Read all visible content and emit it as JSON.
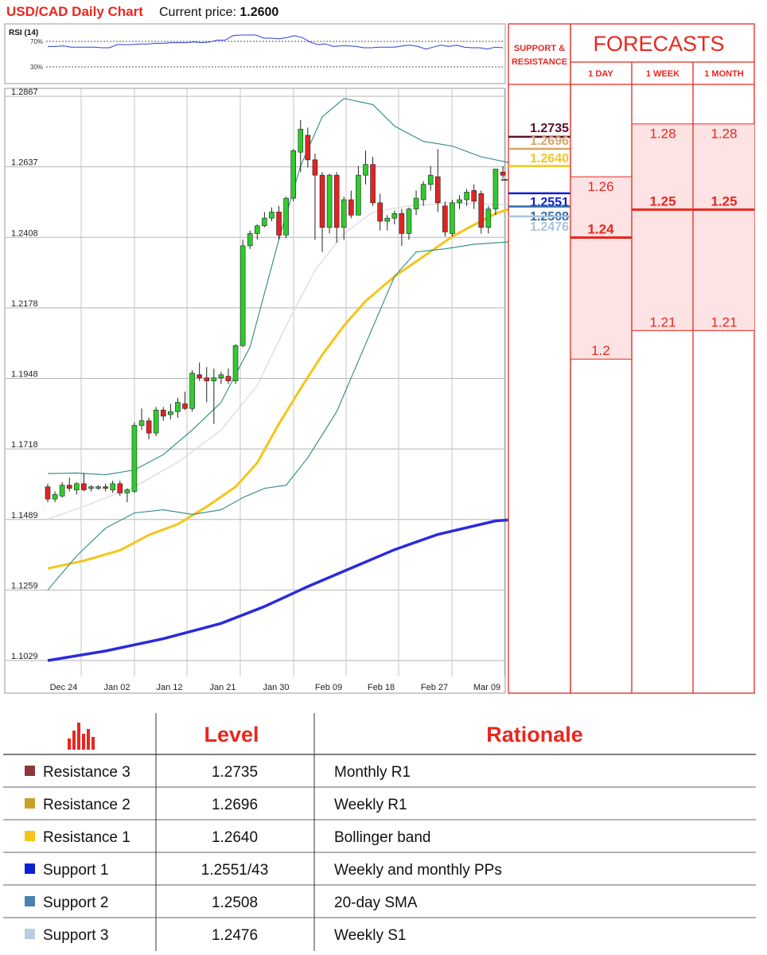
{
  "header": {
    "title": "USD/CAD Daily Chart",
    "price_label": "Current price:",
    "price_value": "1.2600"
  },
  "rsi": {
    "title": "RSI (14)",
    "levels": [
      "70%",
      "30%"
    ],
    "values": [
      62,
      62,
      63,
      61,
      61,
      61,
      61,
      60,
      60,
      65,
      65,
      65,
      66,
      66,
      67,
      67,
      68,
      68,
      68,
      69,
      68,
      69,
      72,
      72,
      79,
      80,
      80,
      80,
      75,
      75,
      74,
      76,
      79,
      76,
      69,
      65,
      66,
      62,
      63,
      63,
      62,
      60,
      60,
      61,
      61,
      61,
      63,
      64,
      62,
      58,
      61,
      64,
      62,
      64,
      61,
      60,
      60,
      58,
      61,
      60
    ]
  },
  "chart_data": {
    "type": "candlestick",
    "title": "USD/CAD Daily Chart",
    "current_price": 1.26,
    "x_ticks": [
      "Dec 24",
      "Jan 02",
      "Jan 12",
      "Jan 21",
      "Jan 30",
      "Feb 09",
      "Feb 18",
      "Feb 27",
      "Mar 09"
    ],
    "y_ticks": [
      "1.2867",
      "1.2637",
      "1.2408",
      "1.2178",
      "1.1948",
      "1.1718",
      "1.1489",
      "1.1259",
      "1.1029"
    ],
    "ylim": [
      1.1029,
      1.2867
    ],
    "candles": [
      {
        "o": 1.1595,
        "h": 1.1605,
        "l": 1.1545,
        "c": 1.1555
      },
      {
        "o": 1.1555,
        "h": 1.158,
        "l": 1.1545,
        "c": 1.157
      },
      {
        "o": 1.1565,
        "h": 1.161,
        "l": 1.156,
        "c": 1.16
      },
      {
        "o": 1.16,
        "h": 1.1625,
        "l": 1.158,
        "c": 1.159
      },
      {
        "o": 1.1585,
        "h": 1.161,
        "l": 1.157,
        "c": 1.1605
      },
      {
        "o": 1.1605,
        "h": 1.164,
        "l": 1.158,
        "c": 1.1585
      },
      {
        "o": 1.159,
        "h": 1.16,
        "l": 1.158,
        "c": 1.1595
      },
      {
        "o": 1.159,
        "h": 1.16,
        "l": 1.1585,
        "c": 1.1595
      },
      {
        "o": 1.1595,
        "h": 1.1605,
        "l": 1.158,
        "c": 1.159
      },
      {
        "o": 1.1585,
        "h": 1.1615,
        "l": 1.1575,
        "c": 1.1605
      },
      {
        "o": 1.1605,
        "h": 1.1615,
        "l": 1.1565,
        "c": 1.1575
      },
      {
        "o": 1.1575,
        "h": 1.159,
        "l": 1.1545,
        "c": 1.1585
      },
      {
        "o": 1.158,
        "h": 1.1805,
        "l": 1.1575,
        "c": 1.1795
      },
      {
        "o": 1.1795,
        "h": 1.185,
        "l": 1.178,
        "c": 1.181
      },
      {
        "o": 1.181,
        "h": 1.182,
        "l": 1.175,
        "c": 1.177
      },
      {
        "o": 1.177,
        "h": 1.1855,
        "l": 1.176,
        "c": 1.1845
      },
      {
        "o": 1.1845,
        "h": 1.1855,
        "l": 1.181,
        "c": 1.1825
      },
      {
        "o": 1.183,
        "h": 1.1865,
        "l": 1.1815,
        "c": 1.184
      },
      {
        "o": 1.184,
        "h": 1.1885,
        "l": 1.182,
        "c": 1.187
      },
      {
        "o": 1.1865,
        "h": 1.1905,
        "l": 1.1845,
        "c": 1.185
      },
      {
        "o": 1.185,
        "h": 1.1975,
        "l": 1.184,
        "c": 1.1965
      },
      {
        "o": 1.196,
        "h": 1.2,
        "l": 1.194,
        "c": 1.195
      },
      {
        "o": 1.195,
        "h": 1.1985,
        "l": 1.187,
        "c": 1.194
      },
      {
        "o": 1.194,
        "h": 1.198,
        "l": 1.18,
        "c": 1.195
      },
      {
        "o": 1.195,
        "h": 1.197,
        "l": 1.193,
        "c": 1.196
      },
      {
        "o": 1.1955,
        "h": 1.198,
        "l": 1.193,
        "c": 1.194
      },
      {
        "o": 1.194,
        "h": 1.206,
        "l": 1.193,
        "c": 1.2055
      },
      {
        "o": 1.2055,
        "h": 1.24,
        "l": 1.205,
        "c": 1.238
      },
      {
        "o": 1.238,
        "h": 1.243,
        "l": 1.237,
        "c": 1.242
      },
      {
        "o": 1.242,
        "h": 1.245,
        "l": 1.24,
        "c": 1.2445
      },
      {
        "o": 1.2445,
        "h": 1.249,
        "l": 1.244,
        "c": 1.247
      },
      {
        "o": 1.247,
        "h": 1.2505,
        "l": 1.246,
        "c": 1.249
      },
      {
        "o": 1.249,
        "h": 1.251,
        "l": 1.24,
        "c": 1.2415
      },
      {
        "o": 1.2415,
        "h": 1.254,
        "l": 1.2405,
        "c": 1.2535
      },
      {
        "o": 1.2535,
        "h": 1.2695,
        "l": 1.2525,
        "c": 1.269
      },
      {
        "o": 1.2685,
        "h": 1.279,
        "l": 1.262,
        "c": 1.276
      },
      {
        "o": 1.274,
        "h": 1.2765,
        "l": 1.2635,
        "c": 1.266
      },
      {
        "o": 1.266,
        "h": 1.268,
        "l": 1.24,
        "c": 1.261
      },
      {
        "o": 1.261,
        "h": 1.262,
        "l": 1.236,
        "c": 1.244
      },
      {
        "o": 1.244,
        "h": 1.2615,
        "l": 1.242,
        "c": 1.261
      },
      {
        "o": 1.261,
        "h": 1.262,
        "l": 1.239,
        "c": 1.244
      },
      {
        "o": 1.244,
        "h": 1.254,
        "l": 1.24,
        "c": 1.253
      },
      {
        "o": 1.253,
        "h": 1.256,
        "l": 1.247,
        "c": 1.248
      },
      {
        "o": 1.248,
        "h": 1.264,
        "l": 1.248,
        "c": 1.261
      },
      {
        "o": 1.261,
        "h": 1.269,
        "l": 1.258,
        "c": 1.2645
      },
      {
        "o": 1.2645,
        "h": 1.267,
        "l": 1.251,
        "c": 1.252
      },
      {
        "o": 1.252,
        "h": 1.255,
        "l": 1.243,
        "c": 1.246
      },
      {
        "o": 1.246,
        "h": 1.248,
        "l": 1.243,
        "c": 1.247
      },
      {
        "o": 1.247,
        "h": 1.2495,
        "l": 1.245,
        "c": 1.2485
      },
      {
        "o": 1.2485,
        "h": 1.25,
        "l": 1.238,
        "c": 1.242
      },
      {
        "o": 1.242,
        "h": 1.2505,
        "l": 1.24,
        "c": 1.25
      },
      {
        "o": 1.25,
        "h": 1.256,
        "l": 1.248,
        "c": 1.2535
      },
      {
        "o": 1.253,
        "h": 1.259,
        "l": 1.251,
        "c": 1.258
      },
      {
        "o": 1.258,
        "h": 1.264,
        "l": 1.256,
        "c": 1.261
      },
      {
        "o": 1.2605,
        "h": 1.2695,
        "l": 1.249,
        "c": 1.252
      },
      {
        "o": 1.251,
        "h": 1.2525,
        "l": 1.241,
        "c": 1.2425
      },
      {
        "o": 1.242,
        "h": 1.253,
        "l": 1.241,
        "c": 1.252
      },
      {
        "o": 1.252,
        "h": 1.2545,
        "l": 1.25,
        "c": 1.253
      },
      {
        "o": 1.253,
        "h": 1.2565,
        "l": 1.251,
        "c": 1.2555
      },
      {
        "o": 1.256,
        "h": 1.258,
        "l": 1.25,
        "c": 1.2525
      },
      {
        "o": 1.255,
        "h": 1.256,
        "l": 1.242,
        "c": 1.244
      },
      {
        "o": 1.244,
        "h": 1.251,
        "l": 1.242,
        "c": 1.25
      },
      {
        "o": 1.25,
        "h": 1.263,
        "l": 1.248,
        "c": 1.263
      },
      {
        "o": 1.262,
        "h": 1.264,
        "l": 1.26,
        "c": 1.261
      }
    ],
    "series": [
      {
        "name": "",
        "color": "#f5c518",
        "points": [
          [
            0,
            1.1329
          ],
          [
            5,
            1.1354
          ],
          [
            10,
            1.1388
          ],
          [
            14,
            1.1438
          ],
          [
            18,
            1.1473
          ],
          [
            22,
            1.153
          ],
          [
            26,
            1.1595
          ],
          [
            29,
            1.1673
          ],
          [
            32,
            1.18
          ],
          [
            35,
            1.1915
          ],
          [
            38,
            1.2025
          ],
          [
            41,
            1.212
          ],
          [
            44,
            1.22
          ],
          [
            48,
            1.228
          ],
          [
            52,
            1.2345
          ],
          [
            56,
            1.241
          ],
          [
            59,
            1.2448
          ],
          [
            62,
            1.2485
          ],
          [
            69,
            1.254
          ]
        ]
      },
      {
        "name": "",
        "color": "#2a2add",
        "points": [
          [
            0,
            1.1029
          ],
          [
            8,
            1.106
          ],
          [
            16,
            1.11
          ],
          [
            24,
            1.115
          ],
          [
            30,
            1.1205
          ],
          [
            36,
            1.127
          ],
          [
            42,
            1.133
          ],
          [
            48,
            1.139
          ],
          [
            54,
            1.144
          ],
          [
            62,
            1.1484
          ],
          [
            69,
            1.1495
          ]
        ]
      },
      {
        "name": "",
        "color": "#2a8a82",
        "points": [
          [
            0,
            1.1638
          ],
          [
            4,
            1.164
          ],
          [
            8,
            1.1634
          ],
          [
            12,
            1.165
          ],
          [
            16,
            1.17
          ],
          [
            20,
            1.178
          ],
          [
            24,
            1.187
          ],
          [
            28,
            1.205
          ],
          [
            32,
            1.24
          ],
          [
            35,
            1.264
          ],
          [
            38,
            1.28
          ],
          [
            41,
            1.286
          ],
          [
            45,
            1.284
          ],
          [
            48,
            1.277
          ],
          [
            52,
            1.272
          ],
          [
            56,
            1.2705
          ],
          [
            60,
            1.267
          ],
          [
            64,
            1.265
          ],
          [
            67,
            1.264
          ],
          [
            69,
            1.2641
          ]
        ]
      },
      {
        "name": "",
        "color": "#2a8a82",
        "points": [
          [
            0,
            1.1259
          ],
          [
            4,
            1.137
          ],
          [
            8,
            1.146
          ],
          [
            12,
            1.151
          ],
          [
            16,
            1.152
          ],
          [
            20,
            1.1505
          ],
          [
            24,
            1.152
          ],
          [
            27,
            1.156
          ],
          [
            30,
            1.159
          ],
          [
            33,
            1.16
          ],
          [
            36,
            1.169
          ],
          [
            40,
            1.184
          ],
          [
            44,
            1.206
          ],
          [
            48,
            1.228
          ],
          [
            51,
            1.236
          ],
          [
            55,
            1.237
          ],
          [
            59,
            1.2385
          ],
          [
            64,
            1.2393
          ],
          [
            69,
            1.239
          ]
        ]
      },
      {
        "name": "",
        "color": "#d9d9d9",
        "points": [
          [
            0,
            1.1489
          ],
          [
            6,
            1.154
          ],
          [
            12,
            1.1595
          ],
          [
            18,
            1.1675
          ],
          [
            24,
            1.178
          ],
          [
            29,
            1.1925
          ],
          [
            33,
            1.212
          ],
          [
            37,
            1.23
          ],
          [
            41,
            1.242
          ],
          [
            45,
            1.249
          ],
          [
            50,
            1.251
          ],
          [
            56,
            1.252
          ],
          [
            62,
            1.2515
          ],
          [
            69,
            1.2508
          ]
        ]
      }
    ]
  },
  "support_resistance": {
    "title_line1": "SUPPORT &",
    "title_line2": "RESISTANCE",
    "levels": [
      {
        "label": "1.2735",
        "color": "#5b0f2e",
        "value": 1.2735
      },
      {
        "label": "1.2696",
        "color": "#d6a66a",
        "value": 1.2696
      },
      {
        "label": "1.2640",
        "color": "#f5c518",
        "value": 1.264
      },
      {
        "label": "1.2551",
        "color": "#0b1fd4",
        "value": 1.2551
      },
      {
        "label": "1.2508",
        "color": "#2f6da8",
        "value": 1.2508
      },
      {
        "label": "1.2476",
        "color": "#a8c4dc",
        "value": 1.2476
      }
    ]
  },
  "forecasts": {
    "title": "FORECASTS",
    "columns": [
      "1 DAY",
      "1 WEEK",
      "1 MONTH"
    ],
    "day": {
      "high": "1.26",
      "mid": "1.24",
      "low": "1.2",
      "high_v": 1.2605,
      "mid_v": 1.2407,
      "low_v": 1.2011
    },
    "week": {
      "high": "1.28",
      "mid": "1.25",
      "low": "1.21",
      "high_v": 1.2777,
      "mid_v": 1.2498,
      "low_v": 1.2104
    },
    "month": {
      "high": "1.28",
      "mid": "1.25",
      "low": "1.21",
      "high_v": 1.2777,
      "mid_v": 1.2498,
      "low_v": 1.2104
    }
  },
  "table": {
    "headers": [
      "Level",
      "Rationale"
    ],
    "rows": [
      {
        "name": "Resistance 3",
        "level": "1.2735",
        "rationale": "Monthly R1",
        "color": "#8b3a3a"
      },
      {
        "name": "Resistance 2",
        "level": "1.2696",
        "rationale": "Weekly R1",
        "color": "#c9a227"
      },
      {
        "name": "Resistance 1",
        "level": "1.2640",
        "rationale": "Bollinger band",
        "color": "#f5c518"
      },
      {
        "name": "Support 1",
        "level": "1.2551/43",
        "rationale": "Weekly and monthly PPs",
        "color": "#0b1fd4"
      },
      {
        "name": "Support 2",
        "level": "1.2508",
        "rationale": "20-day SMA",
        "color": "#4682b4"
      },
      {
        "name": "Support 3",
        "level": "1.2476",
        "rationale": "Weekly S1",
        "color": "#b8cce4"
      }
    ]
  }
}
